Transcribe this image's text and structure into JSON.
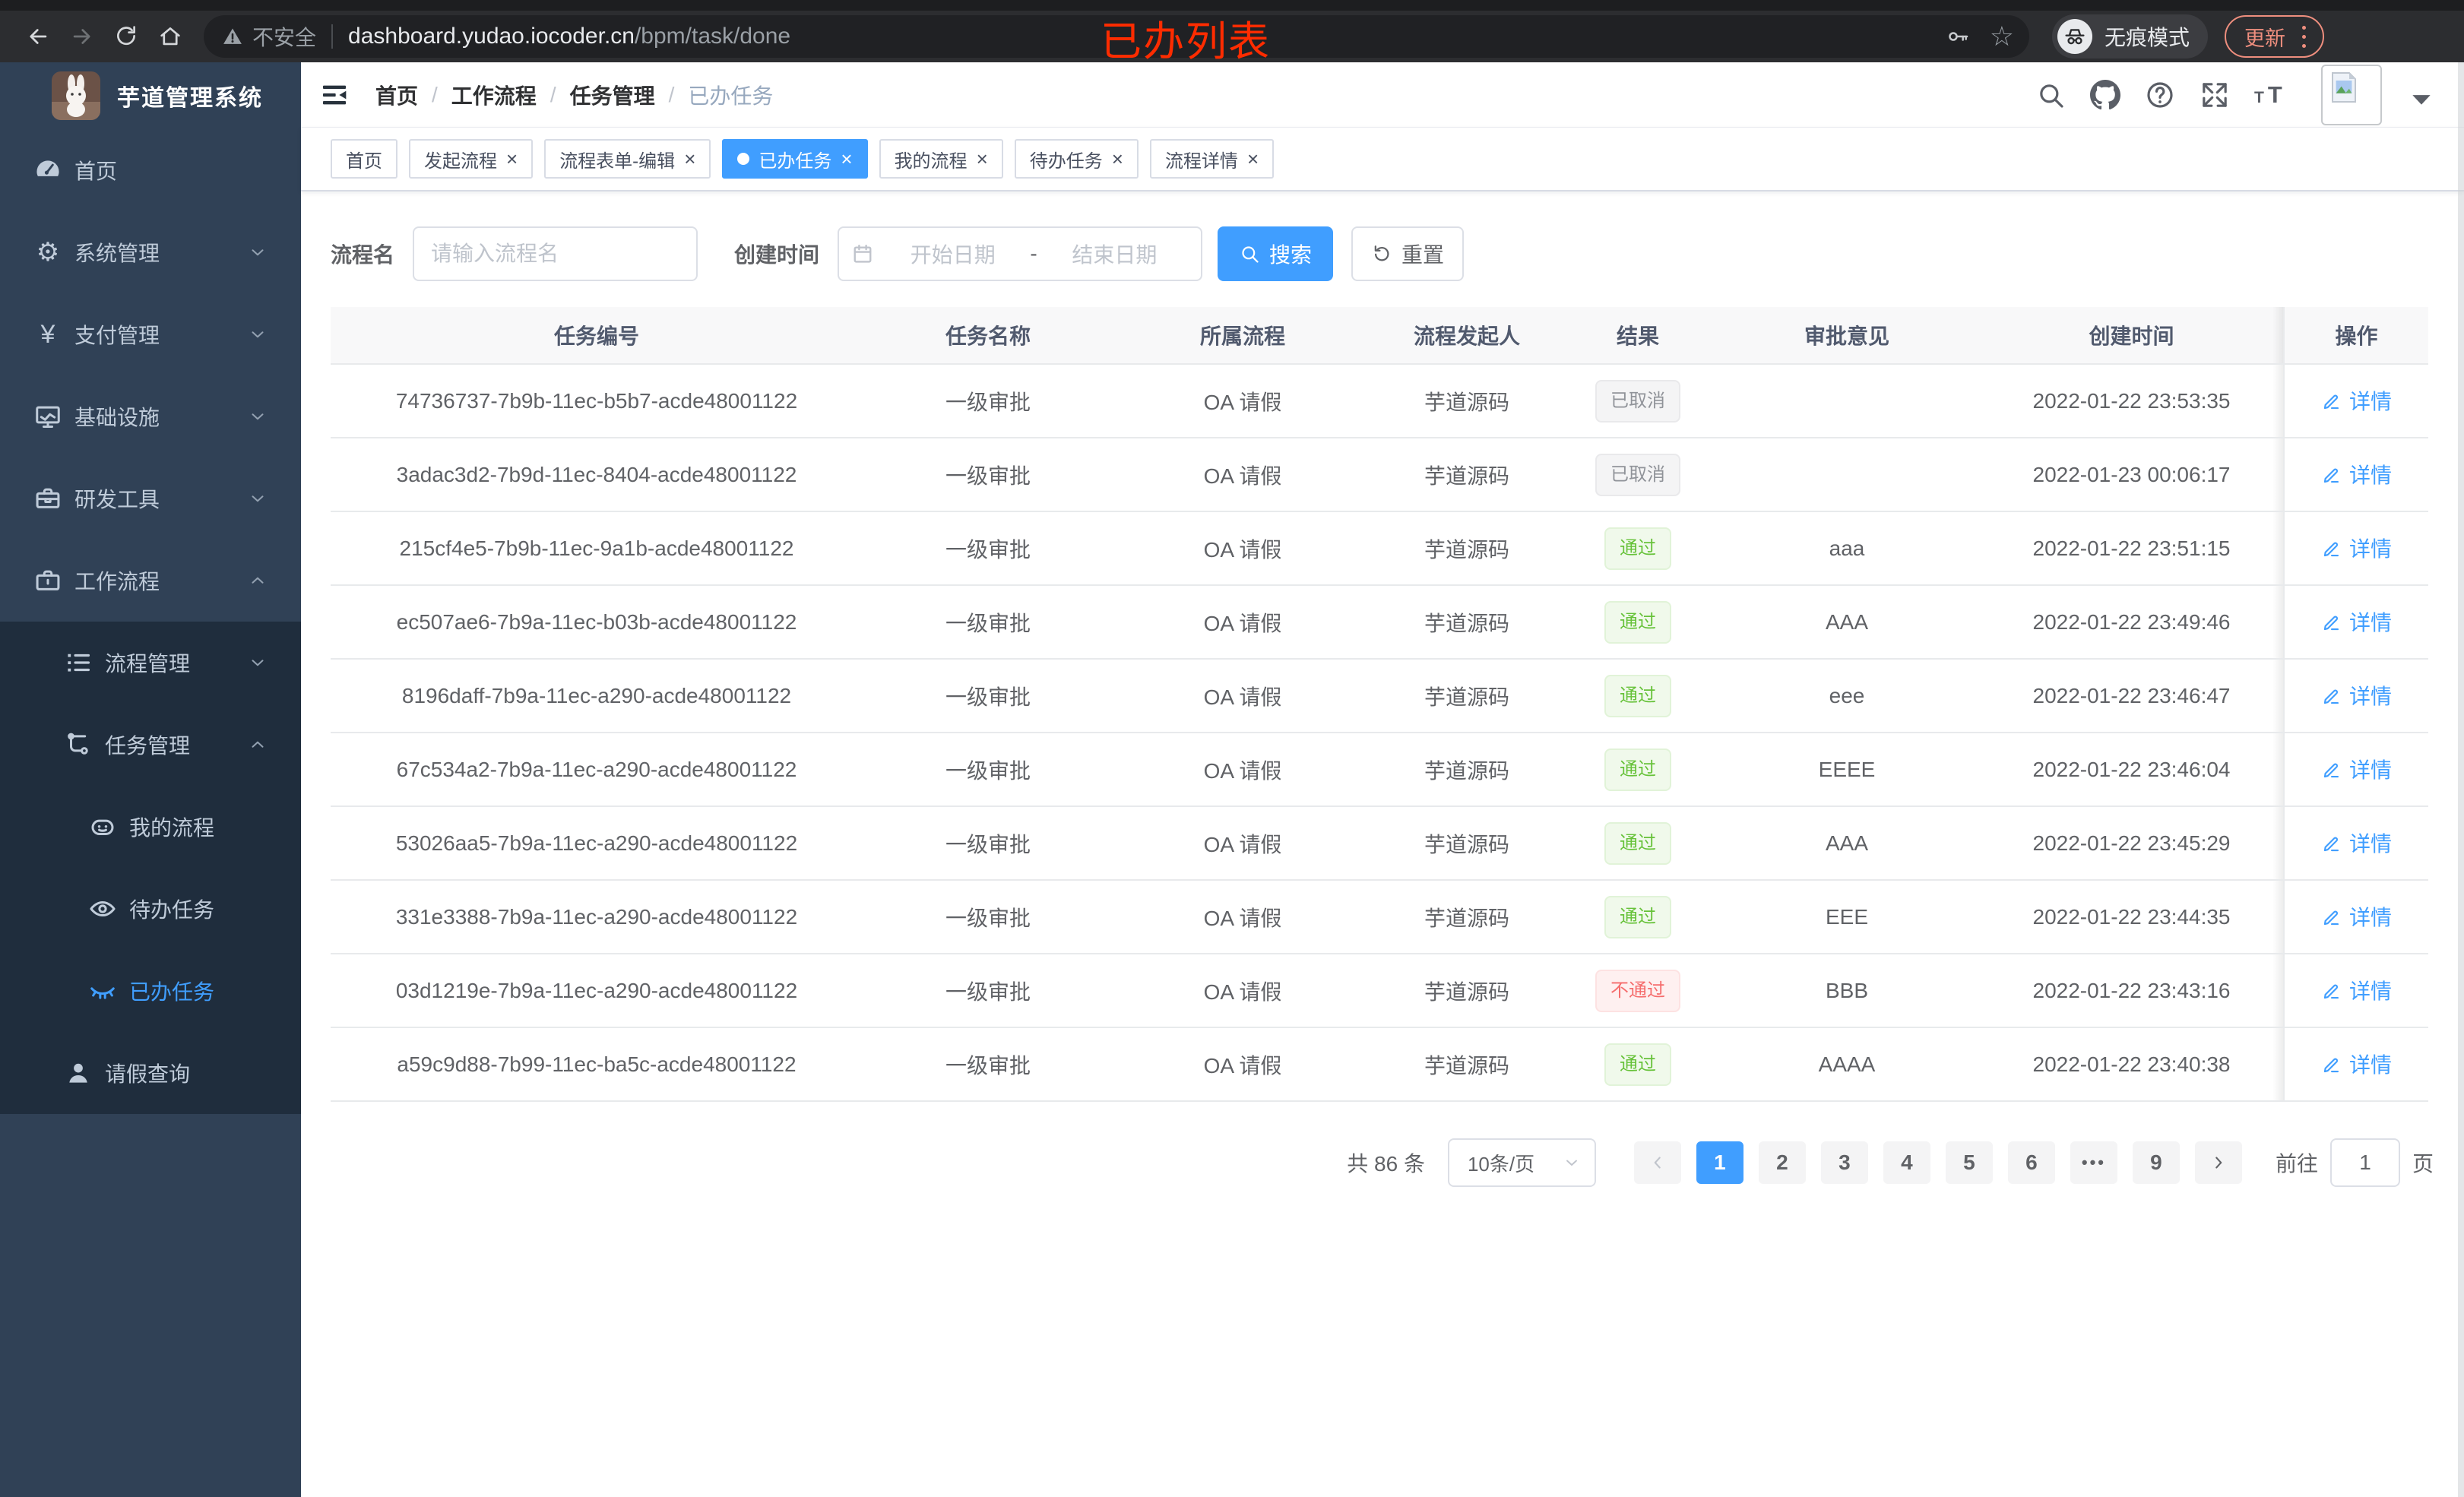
{
  "browser": {
    "security_label": "不安全",
    "url_host": "dashboard.yudao.iocoder.cn",
    "url_path": "/bpm/task/done",
    "incognito_label": "无痕模式",
    "update_button": "更新"
  },
  "annotation": {
    "text": "已办列表",
    "color": "#fe2c00"
  },
  "sidebar": {
    "logo_title": "芋道管理系统",
    "items": [
      {
        "label": "首页",
        "icon": "dashboard-icon",
        "level": 1,
        "arrow": null,
        "sub": false,
        "active": false
      },
      {
        "label": "系统管理",
        "icon": "gear-icon",
        "level": 1,
        "arrow": "down",
        "sub": false,
        "active": false
      },
      {
        "label": "支付管理",
        "icon": "yen-icon",
        "level": 1,
        "arrow": "down",
        "sub": false,
        "active": false
      },
      {
        "label": "基础设施",
        "icon": "monitor-icon",
        "level": 1,
        "arrow": "down",
        "sub": false,
        "active": false
      },
      {
        "label": "研发工具",
        "icon": "toolbox-icon",
        "level": 1,
        "arrow": "down",
        "sub": false,
        "active": false
      },
      {
        "label": "工作流程",
        "icon": "briefcase-icon",
        "level": 1,
        "arrow": "up",
        "sub": false,
        "active": false
      },
      {
        "label": "流程管理",
        "icon": "list-icon",
        "level": 2,
        "arrow": "down",
        "sub": true,
        "active": false
      },
      {
        "label": "任务管理",
        "icon": "flow-icon",
        "level": 2,
        "arrow": "up",
        "sub": true,
        "active": false
      },
      {
        "label": "我的流程",
        "icon": "robot-icon",
        "level": 3,
        "arrow": null,
        "sub": true,
        "active": false
      },
      {
        "label": "待办任务",
        "icon": "eye-icon",
        "level": 3,
        "arrow": null,
        "sub": true,
        "active": false
      },
      {
        "label": "已办任务",
        "icon": "eye-closed-icon",
        "level": 3,
        "arrow": null,
        "sub": true,
        "active": true
      },
      {
        "label": "请假查询",
        "icon": "user-icon",
        "level": 2,
        "arrow": null,
        "sub": true,
        "active": false
      }
    ]
  },
  "breadcrumb": [
    "首页",
    "工作流程",
    "任务管理",
    "已办任务"
  ],
  "tabs": [
    {
      "label": "首页",
      "closable": false,
      "active": false
    },
    {
      "label": "发起流程",
      "closable": true,
      "active": false
    },
    {
      "label": "流程表单-编辑",
      "closable": true,
      "active": false
    },
    {
      "label": "已办任务",
      "closable": true,
      "active": true
    },
    {
      "label": "我的流程",
      "closable": true,
      "active": false
    },
    {
      "label": "待办任务",
      "closable": true,
      "active": false
    },
    {
      "label": "流程详情",
      "closable": true,
      "active": false
    }
  ],
  "filters": {
    "name_label": "流程名",
    "name_placeholder": "请输入流程名",
    "time_label": "创建时间",
    "start_placeholder": "开始日期",
    "range_separator": "-",
    "end_placeholder": "结束日期",
    "search_label": "搜索",
    "reset_label": "重置"
  },
  "table": {
    "columns": [
      "任务编号",
      "任务名称",
      "所属流程",
      "流程发起人",
      "结果",
      "审批意见",
      "创建时间",
      "操作"
    ],
    "action_label": "详情",
    "rows": [
      {
        "id": "74736737-7b9b-11ec-b5b7-acde48001122",
        "name": "一级审批",
        "process": "OA 请假",
        "starter": "芋道源码",
        "result": {
          "label": "已取消",
          "type": "info"
        },
        "opinion": "",
        "created": "2022-01-22 23:53:35"
      },
      {
        "id": "3adac3d2-7b9d-11ec-8404-acde48001122",
        "name": "一级审批",
        "process": "OA 请假",
        "starter": "芋道源码",
        "result": {
          "label": "已取消",
          "type": "info"
        },
        "opinion": "",
        "created": "2022-01-23 00:06:17"
      },
      {
        "id": "215cf4e5-7b9b-11ec-9a1b-acde48001122",
        "name": "一级审批",
        "process": "OA 请假",
        "starter": "芋道源码",
        "result": {
          "label": "通过",
          "type": "success"
        },
        "opinion": "aaa",
        "created": "2022-01-22 23:51:15"
      },
      {
        "id": "ec507ae6-7b9a-11ec-b03b-acde48001122",
        "name": "一级审批",
        "process": "OA 请假",
        "starter": "芋道源码",
        "result": {
          "label": "通过",
          "type": "success"
        },
        "opinion": "AAA",
        "created": "2022-01-22 23:49:46"
      },
      {
        "id": "8196daff-7b9a-11ec-a290-acde48001122",
        "name": "一级审批",
        "process": "OA 请假",
        "starter": "芋道源码",
        "result": {
          "label": "通过",
          "type": "success"
        },
        "opinion": "eee",
        "created": "2022-01-22 23:46:47"
      },
      {
        "id": "67c534a2-7b9a-11ec-a290-acde48001122",
        "name": "一级审批",
        "process": "OA 请假",
        "starter": "芋道源码",
        "result": {
          "label": "通过",
          "type": "success"
        },
        "opinion": "EEEE",
        "created": "2022-01-22 23:46:04"
      },
      {
        "id": "53026aa5-7b9a-11ec-a290-acde48001122",
        "name": "一级审批",
        "process": "OA 请假",
        "starter": "芋道源码",
        "result": {
          "label": "通过",
          "type": "success"
        },
        "opinion": "AAA",
        "created": "2022-01-22 23:45:29"
      },
      {
        "id": "331e3388-7b9a-11ec-a290-acde48001122",
        "name": "一级审批",
        "process": "OA 请假",
        "starter": "芋道源码",
        "result": {
          "label": "通过",
          "type": "success"
        },
        "opinion": "EEE",
        "created": "2022-01-22 23:44:35"
      },
      {
        "id": "03d1219e-7b9a-11ec-a290-acde48001122",
        "name": "一级审批",
        "process": "OA 请假",
        "starter": "芋道源码",
        "result": {
          "label": "不通过",
          "type": "danger"
        },
        "opinion": "BBB",
        "created": "2022-01-22 23:43:16"
      },
      {
        "id": "a59c9d88-7b99-11ec-ba5c-acde48001122",
        "name": "一级审批",
        "process": "OA 请假",
        "starter": "芋道源码",
        "result": {
          "label": "通过",
          "type": "success"
        },
        "opinion": "AAAA",
        "created": "2022-01-22 23:40:38"
      }
    ]
  },
  "pagination": {
    "total_label": "共 86 条",
    "page_size": "10条/页",
    "pages": [
      "1",
      "2",
      "3",
      "4",
      "5",
      "6"
    ],
    "ellipsis": "•••",
    "last_page": "9",
    "active_page": "1",
    "goto_label": "前往",
    "goto_value": "1",
    "unit_label": "页"
  },
  "colors": {
    "accent": "#409eff",
    "sidebar_bg": "#304156",
    "submenu_bg": "#1f2d3d",
    "success": "#67c23a",
    "danger": "#f56c6c",
    "info": "#909399",
    "annotation_red": "#fe2c00"
  }
}
